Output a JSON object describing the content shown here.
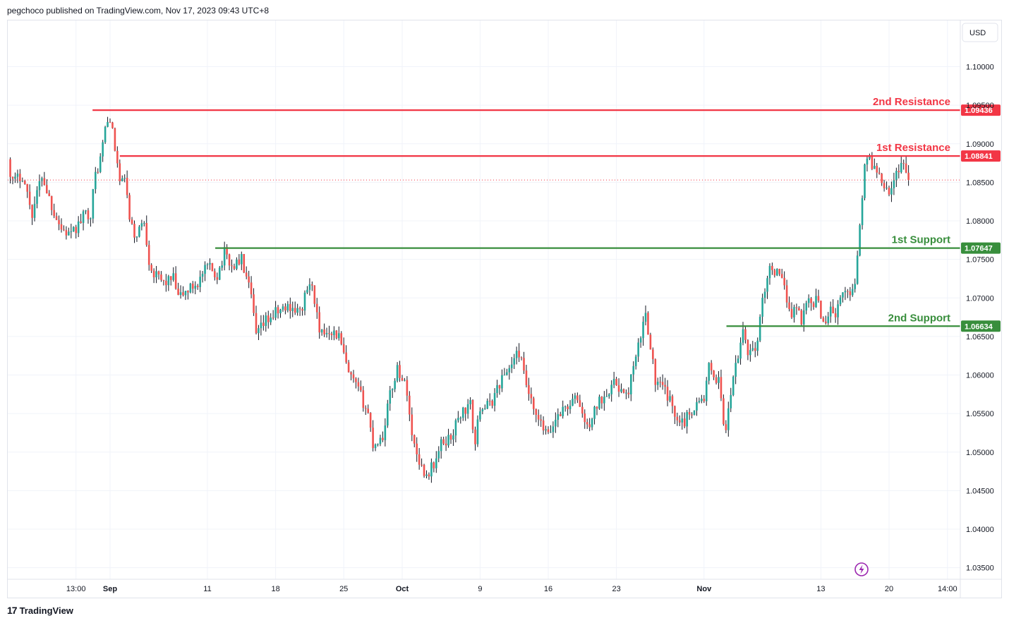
{
  "header": {
    "publisher_text": "pegchoco published on TradingView.com, Nov 17, 2023 09:43 UTC+8"
  },
  "footer": {
    "brand": "TradingView",
    "logo_mark": "17"
  },
  "currency_button": "USD",
  "colors": {
    "up": "#26a69a",
    "down": "#ef5350",
    "resistance": "#f23645",
    "support": "#388e3c",
    "grid": "#f0f3fa",
    "text": "#131722"
  },
  "chart_data": {
    "type": "candlestick",
    "title": "",
    "ylim": [
      1.0335,
      1.106
    ],
    "y_ticks": [
      {
        "label": "1.10000",
        "value": 1.1
      },
      {
        "label": "1.09500",
        "value": 1.095
      },
      {
        "label": "1.09000",
        "value": 1.09
      },
      {
        "label": "1.08500",
        "value": 1.085
      },
      {
        "label": "1.08000",
        "value": 1.08
      },
      {
        "label": "1.07500",
        "value": 1.075
      },
      {
        "label": "1.07000",
        "value": 1.07
      },
      {
        "label": "1.06500",
        "value": 1.065
      },
      {
        "label": "1.06000",
        "value": 1.06
      },
      {
        "label": "1.05500",
        "value": 1.055
      },
      {
        "label": "1.05000",
        "value": 1.05
      },
      {
        "label": "1.04500",
        "value": 1.045
      },
      {
        "label": "1.04000",
        "value": 1.04
      },
      {
        "label": "1.03500",
        "value": 1.035
      }
    ],
    "x_ticks": [
      {
        "label": "13:00",
        "day": -3.5,
        "bold": false
      },
      {
        "label": "Sep",
        "day": 0,
        "bold": true
      },
      {
        "label": "11",
        "day": 10,
        "bold": false
      },
      {
        "label": "18",
        "day": 17,
        "bold": false
      },
      {
        "label": "25",
        "day": 24,
        "bold": false
      },
      {
        "label": "Oct",
        "day": 30,
        "bold": true
      },
      {
        "label": "9",
        "day": 38,
        "bold": false
      },
      {
        "label": "16",
        "day": 45,
        "bold": false
      },
      {
        "label": "23",
        "day": 52,
        "bold": false
      },
      {
        "label": "Nov",
        "day": 61,
        "bold": true
      },
      {
        "label": "13",
        "day": 73,
        "bold": false
      },
      {
        "label": "20",
        "day": 80,
        "bold": false
      },
      {
        "label": "14:00",
        "day": 86,
        "bold": false
      }
    ],
    "levels": [
      {
        "name": "2nd Resistance",
        "value": 1.09436,
        "label": "1.09436",
        "kind": "resistance",
        "start_day": -1.8
      },
      {
        "name": "1st Resistance",
        "value": 1.08841,
        "label": "1.08841",
        "kind": "resistance",
        "start_day": 1.0
      },
      {
        "name": "1st Support",
        "value": 1.07647,
        "label": "1.07647",
        "kind": "support",
        "start_day": 10.8
      },
      {
        "name": "2nd Support",
        "value": 1.06634,
        "label": "1.06634",
        "kind": "support",
        "start_day": 63.3
      }
    ],
    "current_price": 1.0853,
    "path_points": [
      [
        -10.5,
        1.088
      ],
      [
        -10.0,
        1.085
      ],
      [
        -9.0,
        1.086
      ],
      [
        -8.0,
        1.081
      ],
      [
        -7.0,
        1.086
      ],
      [
        -6.0,
        1.082
      ],
      [
        -5.0,
        1.079
      ],
      [
        -4.0,
        1.078
      ],
      [
        -3.0,
        1.08
      ],
      [
        -2.5,
        1.081
      ],
      [
        -2.0,
        1.081
      ],
      [
        -1.5,
        1.086
      ],
      [
        -1.0,
        1.088
      ],
      [
        -0.5,
        1.092
      ],
      [
        0.0,
        1.0935
      ],
      [
        0.4,
        1.09
      ],
      [
        0.8,
        1.087
      ],
      [
        1.1,
        1.084
      ],
      [
        1.5,
        1.086
      ],
      [
        2.0,
        1.08
      ],
      [
        2.5,
        1.078
      ],
      [
        3.5,
        1.08
      ],
      [
        4.0,
        1.075
      ],
      [
        4.5,
        1.073
      ],
      [
        5.5,
        1.072
      ],
      [
        6.5,
        1.0725
      ],
      [
        7.0,
        1.07
      ],
      [
        8.0,
        1.071
      ],
      [
        9.0,
        1.072
      ],
      [
        10.0,
        1.074
      ],
      [
        11.0,
        1.073
      ],
      [
        11.8,
        1.076
      ],
      [
        12.5,
        1.074
      ],
      [
        13.5,
        1.075
      ],
      [
        14.5,
        1.07
      ],
      [
        15.0,
        1.065
      ],
      [
        16.0,
        1.067
      ],
      [
        17.0,
        1.068
      ],
      [
        18.5,
        1.069
      ],
      [
        19.5,
        1.068
      ],
      [
        20.5,
        1.072
      ],
      [
        21.0,
        1.07
      ],
      [
        21.5,
        1.065
      ],
      [
        22.5,
        1.066
      ],
      [
        23.5,
        1.065
      ],
      [
        24.5,
        1.06
      ],
      [
        25.5,
        1.058
      ],
      [
        26.5,
        1.055
      ],
      [
        27.0,
        1.051
      ],
      [
        28.0,
        1.052
      ],
      [
        28.5,
        1.056
      ],
      [
        29.5,
        1.061
      ],
      [
        30.5,
        1.058
      ],
      [
        31.0,
        1.052
      ],
      [
        32.0,
        1.048
      ],
      [
        32.5,
        1.047
      ],
      [
        33.5,
        1.049
      ],
      [
        34.0,
        1.051
      ],
      [
        35.0,
        1.052
      ],
      [
        36.0,
        1.055
      ],
      [
        37.0,
        1.056
      ],
      [
        37.5,
        1.051
      ],
      [
        38.0,
        1.056
      ],
      [
        39.0,
        1.056
      ],
      [
        40.0,
        1.059
      ],
      [
        41.0,
        1.061
      ],
      [
        42.0,
        1.063
      ],
      [
        42.5,
        1.06
      ],
      [
        43.5,
        1.055
      ],
      [
        44.0,
        1.054
      ],
      [
        45.0,
        1.052
      ],
      [
        46.0,
        1.055
      ],
      [
        47.0,
        1.056
      ],
      [
        48.0,
        1.057
      ],
      [
        49.0,
        1.053
      ],
      [
        50.0,
        1.056
      ],
      [
        51.0,
        1.058
      ],
      [
        52.0,
        1.059
      ],
      [
        53.0,
        1.057
      ],
      [
        54.0,
        1.062
      ],
      [
        55.0,
        1.068
      ],
      [
        55.5,
        1.064
      ],
      [
        56.0,
        1.059
      ],
      [
        57.0,
        1.058
      ],
      [
        58.0,
        1.055
      ],
      [
        59.0,
        1.054
      ],
      [
        60.0,
        1.056
      ],
      [
        61.0,
        1.057
      ],
      [
        61.5,
        1.061
      ],
      [
        62.0,
        1.059
      ],
      [
        62.5,
        1.06
      ],
      [
        63.0,
        1.054
      ],
      [
        63.3,
        1.053
      ],
      [
        64.0,
        1.06
      ],
      [
        64.5,
        1.062
      ],
      [
        65.0,
        1.066
      ],
      [
        65.5,
        1.063
      ],
      [
        66.5,
        1.064
      ],
      [
        67.0,
        1.07
      ],
      [
        67.5,
        1.073
      ],
      [
        68.0,
        1.074
      ],
      [
        69.0,
        1.072
      ],
      [
        69.5,
        1.07
      ],
      [
        70.0,
        1.068
      ],
      [
        70.5,
        1.069
      ],
      [
        71.0,
        1.067
      ],
      [
        71.5,
        1.07
      ],
      [
        72.0,
        1.069
      ],
      [
        72.5,
        1.07
      ],
      [
        73.0,
        1.068
      ],
      [
        73.5,
        1.067
      ],
      [
        74.0,
        1.069
      ],
      [
        74.5,
        1.0675
      ],
      [
        75.0,
        1.07
      ],
      [
        76.0,
        1.071
      ],
      [
        76.5,
        1.072
      ],
      [
        77.0,
        1.08
      ],
      [
        77.5,
        1.087
      ],
      [
        78.0,
        1.088
      ],
      [
        78.5,
        1.087
      ],
      [
        79.0,
        1.086
      ],
      [
        80.0,
        1.084
      ],
      [
        80.5,
        1.085
      ],
      [
        81.0,
        1.087
      ],
      [
        81.4,
        1.088
      ],
      [
        81.8,
        1.086
      ],
      [
        82.2,
        1.0853
      ]
    ]
  }
}
